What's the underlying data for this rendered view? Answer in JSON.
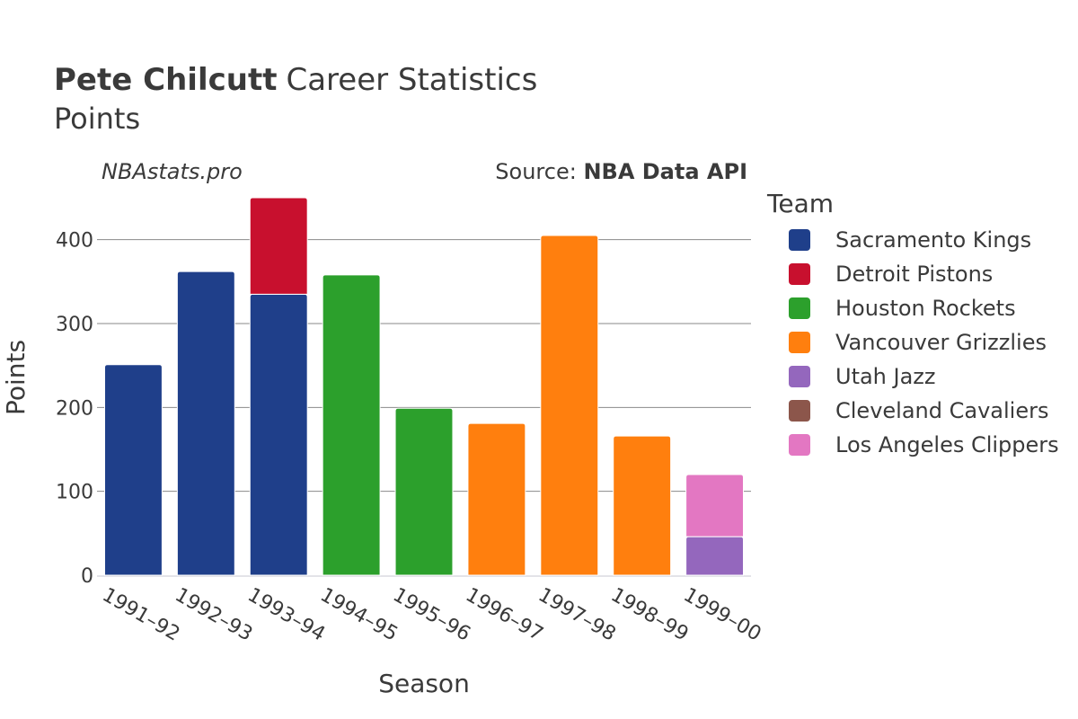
{
  "title": {
    "player": "Pete Chilcutt",
    "rest": "Career Statistics",
    "subtitle": "Points"
  },
  "watermark": "NBAstats.pro",
  "source": {
    "prefix": "Source: ",
    "name": "NBA Data API"
  },
  "chart_data": {
    "type": "bar",
    "stacked": true,
    "title": "Pete Chilcutt Career Statistics — Points",
    "xlabel": "Season",
    "ylabel": "Points",
    "ylim": [
      0,
      450
    ],
    "yticks": [
      0,
      100,
      200,
      300,
      400
    ],
    "categories": [
      "1991–92",
      "1992–93",
      "1993–94",
      "1994–95",
      "1995–96",
      "1996–97",
      "1997–98",
      "1998–99",
      "1999–00"
    ],
    "legend_title": "Team",
    "legend_position": "right",
    "series": [
      {
        "name": "Sacramento Kings",
        "color": "#1f3f8a",
        "values": [
          251,
          362,
          335,
          0,
          0,
          0,
          0,
          0,
          0
        ]
      },
      {
        "name": "Detroit Pistons",
        "color": "#c8102e",
        "values": [
          0,
          0,
          115,
          0,
          0,
          0,
          0,
          0,
          0
        ]
      },
      {
        "name": "Houston Rockets",
        "color": "#2ca02c",
        "values": [
          0,
          0,
          0,
          358,
          199,
          0,
          0,
          0,
          0
        ]
      },
      {
        "name": "Vancouver Grizzlies",
        "color": "#ff7f0e",
        "values": [
          0,
          0,
          0,
          0,
          0,
          181,
          405,
          166,
          0
        ]
      },
      {
        "name": "Utah Jazz",
        "color": "#9467bd",
        "values": [
          0,
          0,
          0,
          0,
          0,
          0,
          0,
          0,
          46
        ]
      },
      {
        "name": "Cleveland Cavaliers",
        "color": "#8c564b",
        "values": [
          0,
          0,
          0,
          0,
          0,
          0,
          0,
          0,
          0
        ]
      },
      {
        "name": "Los Angeles Clippers",
        "color": "#e377c2",
        "values": [
          0,
          0,
          0,
          0,
          0,
          0,
          0,
          0,
          74
        ]
      }
    ]
  }
}
